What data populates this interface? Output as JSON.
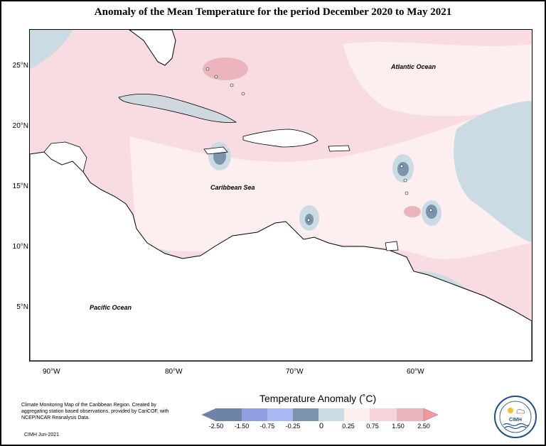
{
  "title": "Anomaly of the Mean Temperature for the period December 2020 to May 2021",
  "map": {
    "latitude_labels": [
      "25°N",
      "20°N",
      "15°N",
      "10°N",
      "5°N"
    ],
    "longitude_labels": [
      "90°W",
      "80°W",
      "70°W",
      "60°W"
    ],
    "ocean_labels": {
      "atlantic": "Atlantic Ocean",
      "caribbean": "Caribbean Sea",
      "pacific": "Pacific Ocean"
    }
  },
  "legend": {
    "title": "Temperature Anomaly (˚C)",
    "ticks": [
      "-2.50",
      "-1.50",
      "-0.75",
      "-0.25",
      "0",
      "0.25",
      "0.75",
      "1.50",
      "2.50"
    ],
    "colors": [
      "#6d83a8",
      "#8f9ee0",
      "#a8b8f5",
      "#7c93ac",
      "#cadbe4",
      "#fdeef0",
      "#f7d3da",
      "#ecb5be",
      "#f5959f"
    ]
  },
  "footer": {
    "description": "Climate Monitoring Map of the Caribbean Region. Created by aggregating station based observations, provided by CariCOF, with NCEP/NCAR Reanalysis Data.",
    "credit": "CIMH  Jun-2021"
  },
  "logo": {
    "text": "CIMH"
  }
}
